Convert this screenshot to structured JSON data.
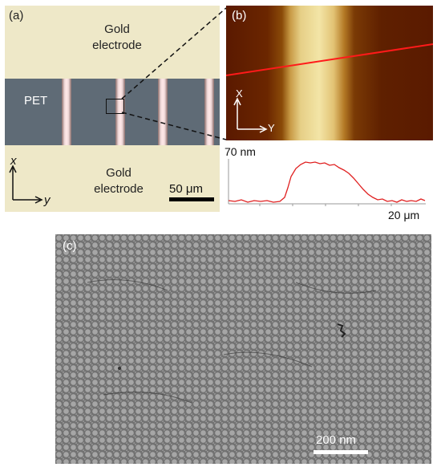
{
  "panel_a": {
    "label": "(a)",
    "gold_top_line1": "Gold",
    "gold_top_line2": "electrode",
    "pet": "PET",
    "gold_bottom_line1": "Gold",
    "gold_bottom_line2": "electrode",
    "axis_x": "x",
    "axis_y": "y",
    "scale_bar": "50 μm"
  },
  "panel_b": {
    "label": "(b)",
    "axis_x": "X",
    "axis_y": "Y"
  },
  "profile": {
    "y_top_label": "70 nm",
    "x_end_label": "20 μm",
    "line_color": "#e02020"
  },
  "panel_c": {
    "label": "(c)",
    "scale_bar": "200 nm"
  }
}
